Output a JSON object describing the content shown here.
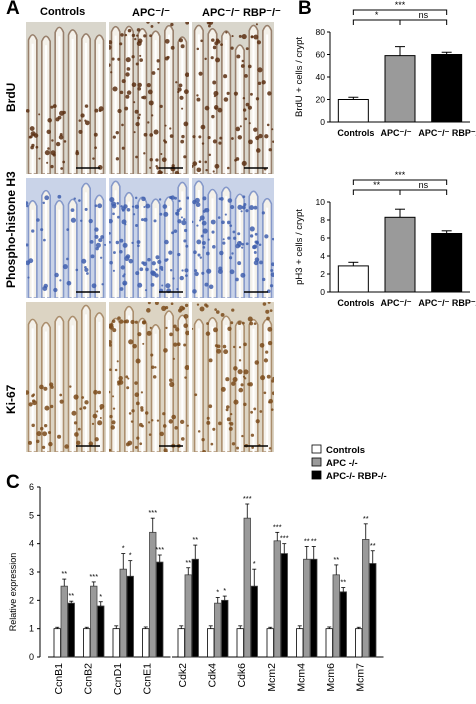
{
  "panelA": {
    "letter": "A",
    "columns": [
      "Controls",
      "APC⁻/⁻",
      "APC⁻/⁻  RBP⁻/⁻"
    ],
    "rows": [
      "BrdU",
      "Phospho-histone H3",
      "Ki-67"
    ]
  },
  "panelB": {
    "letter": "B"
  },
  "panelC": {
    "letter": "C"
  },
  "colors": {
    "controls": "#ffffff",
    "apc": "#9a9a9a",
    "apc_rbp": "#000000",
    "brdu_bg": "#d9d6cc",
    "brdu_stain": "#5a2f12",
    "ph3_bg": "#c9d3e8",
    "ph3_stain": "#3f5fae",
    "ki67_bg": "#dcd4c3",
    "ki67_stain": "#7a4a1a"
  },
  "chart_data": [
    {
      "type": "bar",
      "ylabel": "BrdU + cells / crypt",
      "categories": [
        "Controls",
        "APC⁻/⁻",
        "APC⁻/⁻  RBP⁻/⁻"
      ],
      "values": [
        20,
        59,
        60
      ],
      "errors": [
        2,
        8,
        2
      ],
      "ylim": [
        0,
        80
      ],
      "yticks": [
        0,
        20,
        40,
        60,
        80
      ],
      "significance": [
        {
          "label": "*",
          "from": 0,
          "to": 1
        },
        {
          "label": "ns",
          "from": 1,
          "to": 2
        },
        {
          "label": "***",
          "from": 0,
          "to": 2
        }
      ]
    },
    {
      "type": "bar",
      "ylabel": "pH3 + cells / crypt",
      "categories": [
        "Controls",
        "APC⁻/⁻",
        "APC⁻/⁻  RBP⁻/⁻"
      ],
      "values": [
        2.9,
        8.3,
        6.5
      ],
      "errors": [
        0.4,
        0.9,
        0.3
      ],
      "ylim": [
        0,
        10
      ],
      "yticks": [
        0,
        2,
        4,
        6,
        8,
        10
      ],
      "significance": [
        {
          "label": "**",
          "from": 0,
          "to": 1
        },
        {
          "label": "ns",
          "from": 1,
          "to": 2
        },
        {
          "label": "***",
          "from": 0,
          "to": 2
        }
      ]
    },
    {
      "type": "bar",
      "ylabel": "Relative expression",
      "ylim": [
        0,
        6
      ],
      "yticks": [
        0,
        1,
        2,
        3,
        4,
        5,
        6
      ],
      "series": [
        {
          "name": "Controls",
          "values": [
            1,
            1,
            1,
            1,
            1,
            1,
            1,
            1,
            1,
            1,
            1
          ]
        },
        {
          "name": "APC -/-",
          "values": [
            2.5,
            2.5,
            3.1,
            4.4,
            2.9,
            1.9,
            4.9,
            4.1,
            3.45,
            2.9,
            4.15
          ]
        },
        {
          "name": "APC-/- RBP-/-",
          "values": [
            1.9,
            1.8,
            2.85,
            3.35,
            3.45,
            2.0,
            2.5,
            3.65,
            3.45,
            2.3,
            3.3
          ]
        }
      ],
      "errors": [
        [
          0.05,
          0.05,
          0.1,
          0.06,
          0.1,
          0.1,
          0.1,
          0.05,
          0.1,
          0.06,
          0.05
        ],
        [
          0.25,
          0.15,
          0.55,
          0.5,
          0.25,
          0.2,
          0.5,
          0.3,
          0.45,
          0.35,
          0.55
        ],
        [
          0.07,
          0.15,
          0.55,
          0.25,
          0.5,
          0.15,
          0.6,
          0.35,
          0.45,
          0.15,
          0.45
        ]
      ],
      "stars": [
        [
          "**",
          "**"
        ],
        [
          "***",
          "*"
        ],
        [
          "*",
          "*"
        ],
        [
          "***",
          "***"
        ],
        [
          "**",
          "**"
        ],
        [
          "*",
          "*"
        ],
        [
          "***",
          "*"
        ],
        [
          "***",
          "***"
        ],
        [
          "**",
          "**"
        ],
        [
          "**",
          "**"
        ],
        [
          "**",
          "**"
        ]
      ],
      "categories": [
        "CcnB1",
        "CcnB2",
        "CcnD1",
        "CcnE1",
        "Cdk2",
        "Cdk4",
        "Cdk6",
        "Mcm2",
        "Mcm4",
        "Mcm6",
        "Mcm7"
      ],
      "groups": [
        [
          0,
          1,
          2,
          3
        ],
        [
          4,
          5,
          6
        ],
        [
          7,
          8,
          9,
          10
        ]
      ],
      "legend_position": "top-right"
    }
  ]
}
